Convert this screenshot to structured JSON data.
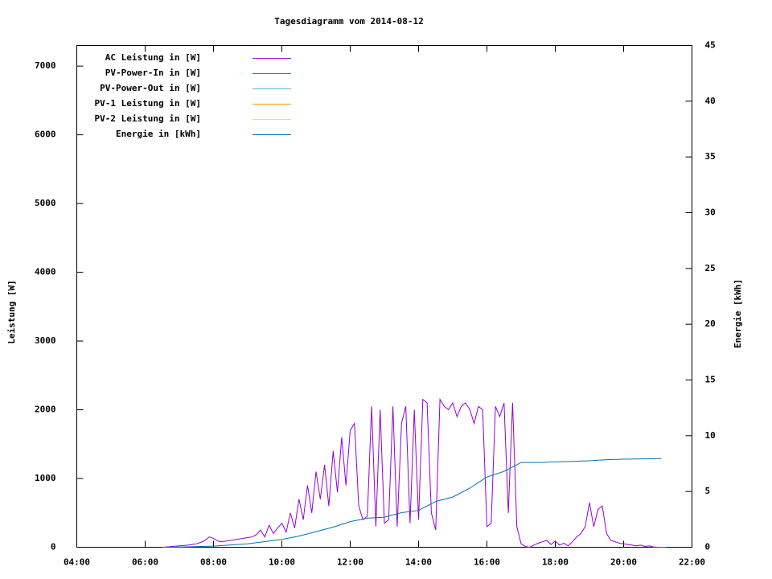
{
  "chart_data": {
    "type": "line",
    "title": "Tagesdiagramm vom 2014-08-12",
    "ylabel": "Leistung [W]",
    "y2label": "Energie [kWh]",
    "xlim": [
      4,
      22
    ],
    "xticks": [
      {
        "value": 4,
        "label": "04:00"
      },
      {
        "value": 6,
        "label": "06:00"
      },
      {
        "value": 8,
        "label": "08:00"
      },
      {
        "value": 10,
        "label": "10:00"
      },
      {
        "value": 12,
        "label": "12:00"
      },
      {
        "value": 14,
        "label": "14:00"
      },
      {
        "value": 16,
        "label": "16:00"
      },
      {
        "value": 18,
        "label": "18:00"
      },
      {
        "value": 20,
        "label": "20:00"
      },
      {
        "value": 22,
        "label": "22:00"
      }
    ],
    "ylim": [
      0,
      7300
    ],
    "yticks": [
      0,
      1000,
      2000,
      3000,
      4000,
      5000,
      6000,
      7000
    ],
    "y2lim": [
      0,
      45
    ],
    "y2ticks": [
      0,
      5,
      10,
      15,
      20,
      25,
      30,
      35,
      40,
      45
    ],
    "legend": "top-left",
    "series": [
      {
        "name": "AC Leistung in [W]",
        "color": "#9400d3",
        "x": [
          6.5,
          6.625,
          6.75,
          6.875,
          7,
          7.125,
          7.25,
          7.375,
          7.5,
          7.625,
          7.75,
          7.875,
          8,
          8.125,
          8.25,
          8.375,
          8.5,
          8.625,
          8.75,
          8.875,
          9,
          9.125,
          9.25,
          9.375,
          9.5,
          9.625,
          9.75,
          9.875,
          10,
          10.125,
          10.25,
          10.375,
          10.5,
          10.625,
          10.75,
          10.875,
          11,
          11.125,
          11.25,
          11.375,
          11.5,
          11.625,
          11.75,
          11.875,
          12,
          12.125,
          12.25,
          12.375,
          12.5,
          12.625,
          12.75,
          12.875,
          13,
          13.125,
          13.25,
          13.375,
          13.5,
          13.625,
          13.75,
          13.875,
          14,
          14.125,
          14.25,
          14.375,
          14.5,
          14.625,
          14.75,
          14.875,
          15,
          15.125,
          15.25,
          15.375,
          15.5,
          15.625,
          15.75,
          15.875,
          16,
          16.125,
          16.25,
          16.375,
          16.5,
          16.625,
          16.75,
          16.875,
          17,
          17.125,
          17.25,
          17.375,
          17.5,
          17.625,
          17.75,
          17.875,
          18,
          18.125,
          18.25,
          18.375,
          18.5,
          18.625,
          18.75,
          18.875,
          19,
          19.125,
          19.25,
          19.375,
          19.5,
          19.625,
          19.75,
          19.875,
          20,
          20.125,
          20.25,
          20.375,
          20.5,
          20.625,
          20.75,
          20.875,
          21,
          21.125,
          21.25
        ],
        "values": [
          0,
          5,
          10,
          15,
          20,
          25,
          30,
          40,
          50,
          70,
          100,
          150,
          130,
          90,
          80,
          90,
          100,
          110,
          120,
          130,
          140,
          150,
          180,
          250,
          150,
          320,
          200,
          280,
          350,
          220,
          500,
          280,
          700,
          400,
          900,
          500,
          1100,
          700,
          1200,
          600,
          1400,
          800,
          1600,
          900,
          1700,
          1800,
          600,
          400,
          450,
          2050,
          300,
          2000,
          350,
          400,
          2050,
          300,
          1800,
          2050,
          350,
          2000,
          400,
          2150,
          2100,
          500,
          250,
          2150,
          2050,
          2000,
          2100,
          1900,
          2050,
          2100,
          2000,
          1800,
          2050,
          2000,
          300,
          350,
          2050,
          1900,
          2100,
          500,
          2100,
          300,
          50,
          10,
          0,
          30,
          60,
          80,
          100,
          40,
          90,
          30,
          60,
          20,
          80,
          150,
          200,
          300,
          650,
          300,
          550,
          600,
          200,
          100,
          80,
          60,
          50,
          40,
          30,
          20,
          30,
          10,
          20,
          5,
          0,
          0,
          0
        ]
      },
      {
        "name": "PV-Power-In in [W]",
        "color": "#009e73",
        "x": [],
        "values": []
      },
      {
        "name": "PV-Power-Out in [W]",
        "color": "#56b4e9",
        "x": [],
        "values": []
      },
      {
        "name": "PV-1 Leistung in [W]",
        "color": "#e69f00",
        "x": [],
        "values": []
      },
      {
        "name": "PV-2 Leistung in [W]",
        "color": "#f0e442",
        "x": [],
        "values": []
      },
      {
        "name": "Energie in [kWh]",
        "color": "#0072b2",
        "axis": "y2",
        "x": [
          6.5,
          7,
          8,
          9,
          10,
          10.5,
          11,
          11.5,
          12,
          12.5,
          13,
          13.5,
          14,
          14.5,
          15,
          15.5,
          16,
          16.5,
          17,
          17.5,
          18,
          18.5,
          19,
          19.5,
          20,
          21.1
        ],
        "values": [
          0,
          0.02,
          0.1,
          0.3,
          0.7,
          1.0,
          1.4,
          1.8,
          2.3,
          2.6,
          2.7,
          3.1,
          3.3,
          4.1,
          4.5,
          5.3,
          6.3,
          6.8,
          7.6,
          7.6,
          7.65,
          7.7,
          7.75,
          7.85,
          7.9,
          7.95
        ]
      }
    ]
  }
}
